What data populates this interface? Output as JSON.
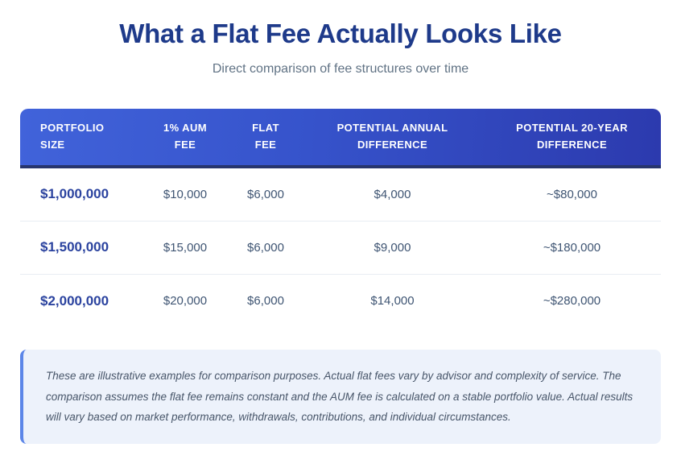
{
  "header": {
    "title": "What a Flat Fee Actually Looks Like",
    "subtitle": "Direct comparison of fee structures over time"
  },
  "table": {
    "columns": [
      "PORTFOLIO SIZE",
      "1% AUM FEE",
      "FLAT FEE",
      "POTENTIAL ANNUAL DIFFERENCE",
      "POTENTIAL 20-YEAR DIFFERENCE"
    ],
    "rows": [
      [
        "$1,000,000",
        "$10,000",
        "$6,000",
        "$4,000",
        "~$80,000"
      ],
      [
        "$1,500,000",
        "$15,000",
        "$6,000",
        "$9,000",
        "~$180,000"
      ],
      [
        "$2,000,000",
        "$20,000",
        "$6,000",
        "$14,000",
        "~$280,000"
      ]
    ]
  },
  "note": {
    "text": "These are illustrative examples for comparison purposes. Actual flat fees vary by advisor and complexity of service. The comparison assumes the flat fee remains constant and the AUM fee is calculated on a stable portfolio value. Actual results will vary based on market performance, withdrawals, contributions, and individual circumstances."
  },
  "colors": {
    "title_text": "#1e3a8a",
    "subtitle_text": "#607284",
    "header_gradient_start": "#4163da",
    "header_gradient_end": "#2c3aae",
    "header_bottom_border": "#27356d",
    "header_text": "#ffffff",
    "portfolio_text": "#2b439f",
    "value_text": "#3f5573",
    "row_divider": "#e8edf3",
    "note_background": "#edf2fb",
    "note_left_border": "#5c86e8",
    "note_text": "#475569"
  },
  "chart_data": {
    "type": "table",
    "title": "What a Flat Fee Actually Looks Like",
    "subtitle": "Direct comparison of fee structures over time",
    "columns": [
      "PORTFOLIO SIZE",
      "1% AUM FEE",
      "FLAT FEE",
      "POTENTIAL ANNUAL DIFFERENCE",
      "POTENTIAL 20-YEAR DIFFERENCE"
    ],
    "rows": [
      [
        "$1,000,000",
        "$10,000",
        "$6,000",
        "$4,000",
        "~$80,000"
      ],
      [
        "$1,500,000",
        "$15,000",
        "$6,000",
        "$9,000",
        "~$180,000"
      ],
      [
        "$2,000,000",
        "$20,000",
        "$6,000",
        "$14,000",
        "~$280,000"
      ]
    ],
    "caption": "These are illustrative examples for comparison purposes. Actual flat fees vary by advisor and complexity of service. The comparison assumes the flat fee remains constant and the AUM fee is calculated on a stable portfolio value. Actual results will vary based on market performance, withdrawals, contributions, and individual circumstances."
  }
}
